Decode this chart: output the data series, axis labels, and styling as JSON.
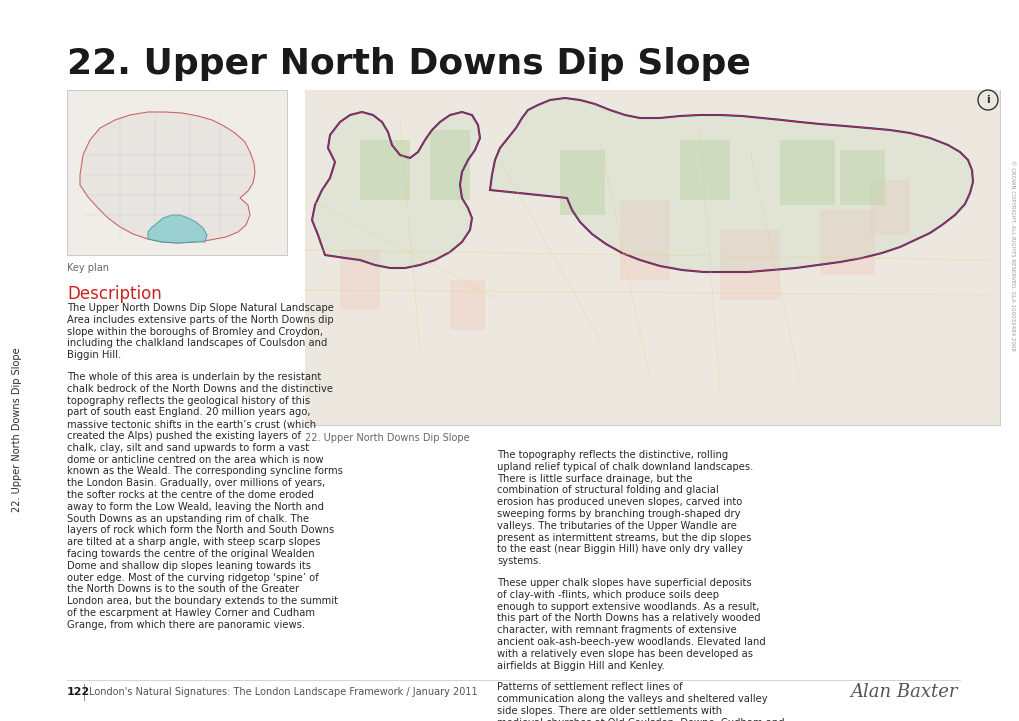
{
  "title": "22. Upper North Downs Dip Slope",
  "background_color": "#ffffff",
  "title_color": "#1a1a1a",
  "title_fontsize": 26,
  "sidebar_text": "22. Upper North Downs Dip Slope",
  "sidebar_color": "#2a2a2a",
  "description_heading": "Description",
  "description_heading_color": "#cc2222",
  "key_plan_label": "Key plan",
  "map_caption": "22. Upper North Downs Dip Slope",
  "footer_left_number": "122",
  "footer_left_text": "London's Natural Signatures: The London Landscape Framework / January 2011",
  "footer_right_text": "Alan Baxter",
  "col1_para1": "The Upper North Downs Dip Slope Natural Landscape Area includes extensive parts of the North Downs dip slope within the boroughs of Bromley and Croydon, including the chalkland landscapes of Coulsdon and Biggin Hill.",
  "col1_para2": "The whole of this area is underlain by the resistant chalk bedrock of the North Downs and the distinctive topography reflects the geological history of this part of south east England. 20 million years ago, massive tectonic shifts in the earth’s crust (which created the Alps) pushed the existing layers of chalk, clay, silt and sand upwards to form a vast dome or anticline centred on the area which is now known as the Weald. The corresponding syncline forms the London Basin. Gradually, over millions of years, the softer rocks at the centre of the dome eroded away to form the Low Weald, leaving the North and South Downs as an upstanding rim of chalk. The layers of rock which form the North and South Downs are tilted at a sharp angle, with steep scarp slopes facing towards the centre of the original Wealden Dome and shallow dip slopes leaning towards its outer edge. Most of the curving ridgetop ‘spine’ of the North Downs is to the south of the Greater London area, but the boundary extends to the summit of the escarpment at Hawley Corner and Cudham Grange, from which there are panoramic views.",
  "col2_para1": "The topography reflects the distinctive, rolling upland relief typical of chalk downland landscapes. There is little surface drainage, but the combination of structural folding and glacial erosion has produced uneven slopes, carved into sweeping forms by branching trough-shaped dry valleys. The tributaries of the Upper Wandle are present as intermittent streams, but the dip slopes to the east (near Biggin Hill) have only dry valley systems.",
  "col2_para2": "These upper chalk slopes have superficial deposits of clay-with -flints, which produce soils deep enough to support extensive woodlands. As a result, this part of the North Downs has a relatively wooded character, with remnant fragments of extensive ancient oak-ash-beech-yew woodlands. Elevated land with a relatively even slope has been developed as airfields at Biggin Hill and Kenley.",
  "col2_para3": "Patterns of settlement reflect lines of communication along the valleys and sheltered valley side slopes. There are older settlements with medieval churches at Old Coulsdon, Downe, Cudham and Sanderstead but there has been extensive plotland, interwar and postwar residential development, predominantly around Purley and Coulsdon.",
  "text_color": "#2a2a2a",
  "text_fontsize": 7.2,
  "footer_fontsize": 7,
  "line_color": "#cccccc",
  "map_bg_color": "#e8ede8",
  "map_border_color": "#bbbbbb",
  "key_plan_bg": "#f0ede8",
  "key_plan_london_fill": "#e8e4e0",
  "key_plan_london_edge": "#cc6666",
  "key_plan_highlight_fill": "#88cccc",
  "key_plan_highlight_edge": "#4499aa",
  "copyright_text": "© CROWN COPYRIGHT. ALL RIGHTS RESERVED. GLA 100032484 2008"
}
